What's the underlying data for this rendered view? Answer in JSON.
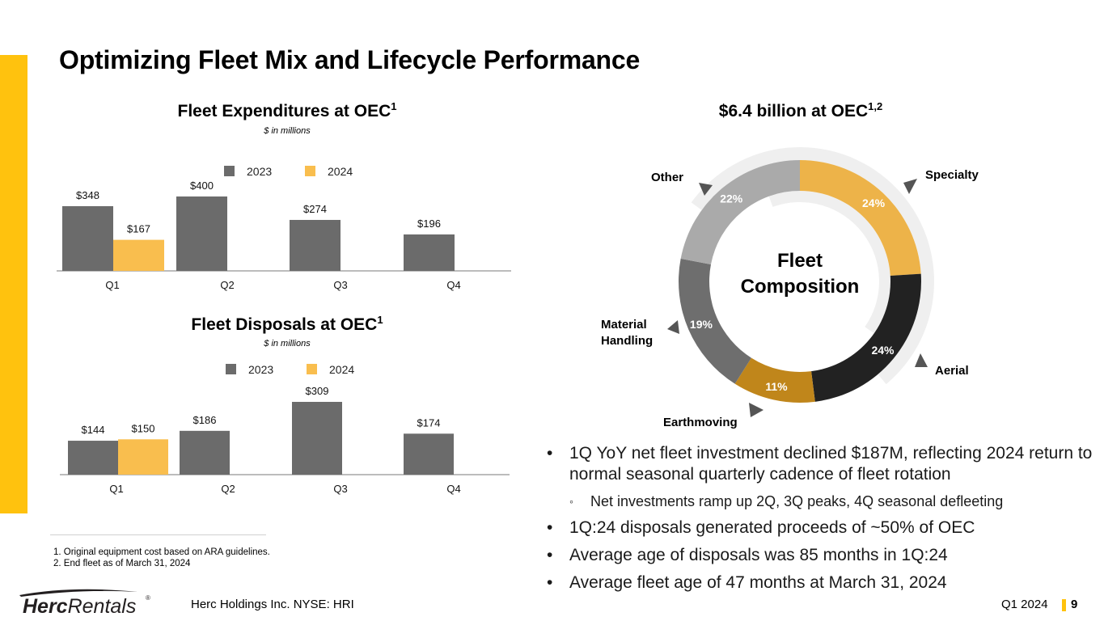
{
  "page": {
    "title": "Optimizing Fleet Mix and Lifecycle Performance",
    "colors": {
      "accent": "#FFC20E",
      "series_2023": "#6B6B6B",
      "series_2024": "#F9BE4E",
      "axis": "#A6A6A6"
    }
  },
  "chart_data": [
    {
      "type": "bar",
      "title": "Fleet Expenditures at OEC",
      "title_sup": "1",
      "subtitle": "$ in millions",
      "categories": [
        "Q1",
        "Q2",
        "Q3",
        "Q4"
      ],
      "series": [
        {
          "name": "2023",
          "values": [
            348,
            400,
            274,
            196
          ],
          "labels": [
            "$348",
            "$400",
            "$274",
            "$196"
          ]
        },
        {
          "name": "2024",
          "values": [
            167,
            null,
            null,
            null
          ],
          "labels": [
            "$167",
            "",
            "",
            ""
          ]
        }
      ],
      "legend": "top-center",
      "xlabel": "",
      "ylabel": "",
      "ylim": [
        0,
        400
      ],
      "grid": false
    },
    {
      "type": "bar",
      "title": "Fleet Disposals at OEC",
      "title_sup": "1",
      "subtitle": "$ in millions",
      "categories": [
        "Q1",
        "Q2",
        "Q3",
        "Q4"
      ],
      "series": [
        {
          "name": "2023",
          "values": [
            144,
            186,
            309,
            174
          ],
          "labels": [
            "$144",
            "$186",
            "$309",
            "$174"
          ]
        },
        {
          "name": "2024",
          "values": [
            150,
            null,
            null,
            null
          ],
          "labels": [
            "$150",
            "",
            "",
            ""
          ]
        }
      ],
      "legend": "top-center",
      "xlabel": "",
      "ylabel": "",
      "ylim": [
        0,
        309
      ],
      "grid": false
    },
    {
      "type": "pie",
      "title": "$6.4 billion at OEC",
      "title_sup": "1,2",
      "center_label": [
        "Fleet",
        "Composition"
      ],
      "slices": [
        {
          "name": "Specialty",
          "value": 24,
          "label": "24%",
          "color": "#EDB349"
        },
        {
          "name": "Aerial",
          "value": 24,
          "label": "24%",
          "color": "#222222"
        },
        {
          "name": "Earthmoving",
          "value": 11,
          "label": "11%",
          "color": "#C0861B"
        },
        {
          "name": "Material Handling",
          "value": 19,
          "label": "19%",
          "color": "#6E6E6E"
        },
        {
          "name": "Other",
          "value": 22,
          "label": "22%",
          "color": "#AAAAAA"
        }
      ]
    }
  ],
  "bullets": [
    {
      "text": "1Q YoY net fleet investment declined $187M, reflecting 2024 return to normal seasonal quarterly cadence of fleet rotation",
      "sub": "Net investments ramp up 2Q, 3Q peaks, 4Q seasonal defleeting"
    },
    {
      "text": "1Q:24 disposals generated proceeds of ~50% of OEC"
    },
    {
      "text": "Average age of disposals was 85 months in 1Q:24"
    },
    {
      "text": "Average fleet age of 47 months at March 31, 2024"
    }
  ],
  "footnotes": [
    "1. Original equipment cost based on ARA guidelines.",
    "2. End fleet as of March 31, 2024"
  ],
  "footer": {
    "logo_bold": "Herc",
    "logo_light": "Rentals",
    "logo_mark": "®",
    "company": "Herc Holdings Inc.  NYSE: HRI",
    "period": "Q1 2024",
    "page_number": "9"
  }
}
